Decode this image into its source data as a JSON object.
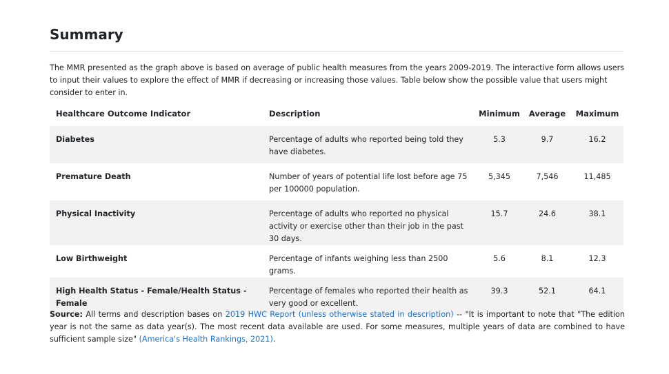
{
  "heading": "Summary",
  "intro": "The MMR presented as the graph above is based on average of public health measures from the years 2009-2019. The interactive form allows users to input their values to explore the effect of MMR if decreasing or increasing those values. Table below show the possible value that users might consider to enter in.",
  "table": {
    "headers": {
      "indicator": "Healthcare Outcome Indicator",
      "description": "Description",
      "minimum": "Minimum",
      "average": "Average",
      "maximum": "Maximum"
    },
    "rows": [
      {
        "indicator": "Diabetes",
        "description": "Percentage of adults who reported being told they have diabetes.",
        "minimum": "5.3",
        "average": "9.7",
        "maximum": "16.2"
      },
      {
        "indicator": "Premature Death",
        "description": "Number of years of potential life lost before age 75 per 100000 population.",
        "minimum": "5,345",
        "average": "7,546",
        "maximum": "11,485"
      },
      {
        "indicator": "Physical Inactivity",
        "description": "Percentage of adults who reported no physical activity or exercise other than their job in the past 30 days.",
        "minimum": "15.7",
        "average": "24.6",
        "maximum": "38.1"
      },
      {
        "indicator": "Low Birthweight",
        "description": "Percentage of infants weighing less than 2500 grams.",
        "minimum": "5.6",
        "average": "8.1",
        "maximum": "12.3"
      },
      {
        "indicator": "High Health Status - Female/Health Status - Female",
        "description": "Percentage of females who reported their health as very good or excellent.",
        "minimum": "39.3",
        "average": "52.1",
        "maximum": "64.1"
      }
    ]
  },
  "source": {
    "label": "Source:",
    "text_before_link": " All terms and description bases on ",
    "report_link": "2019 HWC Report (unless otherwise stated in description)",
    "text_after_link": " -- \"It is important to note that \"The edition year is not the same as data year(s). The most recent data available are used. For some measures, multiple years of data are combined to have sufficient sample size\" ",
    "rankings_link": "(America's Health Rankings, 2021)",
    "end": "."
  },
  "colors": {
    "text": "#212529",
    "link": "#1a73c8",
    "stripe": "#f2f2f2",
    "rule": "#e1e4e8"
  }
}
